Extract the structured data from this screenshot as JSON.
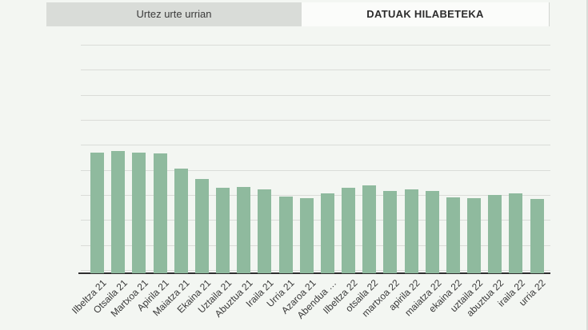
{
  "tabs": [
    {
      "label": "Urtez urte urrian",
      "active": false
    },
    {
      "label": "DATUAK HILABETEKA",
      "active": true
    }
  ],
  "colors": {
    "page_bg": "#f3f6f2",
    "bar": "#8fba9e",
    "gridline": "#dadcd8",
    "axis": "#2f2f2f",
    "inactive_tab_bg": "#d9dcd8",
    "active_tab_bg": "#fbfcfa",
    "text": "#3a3a3a",
    "divider": "#d2d5d1"
  },
  "chart_data": {
    "type": "bar",
    "title": "",
    "xlabel": "",
    "ylabel": "",
    "y_axis_tick_labels": "none visible",
    "value_unit": "percent of plot-area height (estimated from gridlines; no numeric y labels shown)",
    "ylim": [
      0,
      100
    ],
    "grid": "horizontal",
    "legend": "none",
    "categories": [
      "Ilbeltza 21",
      "Otsaila 21",
      "Martxoa 21",
      "Apirila 21",
      "Maiatza 21",
      "Ekaina 21",
      "Uztaila 21",
      "Abuztua 21",
      "Iraila 21",
      "Urria 21",
      "Azaroa 21",
      "Abendua …",
      "Ilbeltza 22",
      "otsaila 22",
      "martxoa 22",
      "apirila 22",
      "maiatza 22",
      "ekaina 22",
      "uztaila 22",
      "abuztua 22",
      "iraila 22",
      "urria 22"
    ],
    "values": [
      52.9,
      53.5,
      52.9,
      52.5,
      45.9,
      41.4,
      37.4,
      37.8,
      36.7,
      33.4,
      32.9,
      34.8,
      37.3,
      38.6,
      36.1,
      36.8,
      35.9,
      33.1,
      33.0,
      34.3,
      34.8,
      32.4
    ]
  }
}
